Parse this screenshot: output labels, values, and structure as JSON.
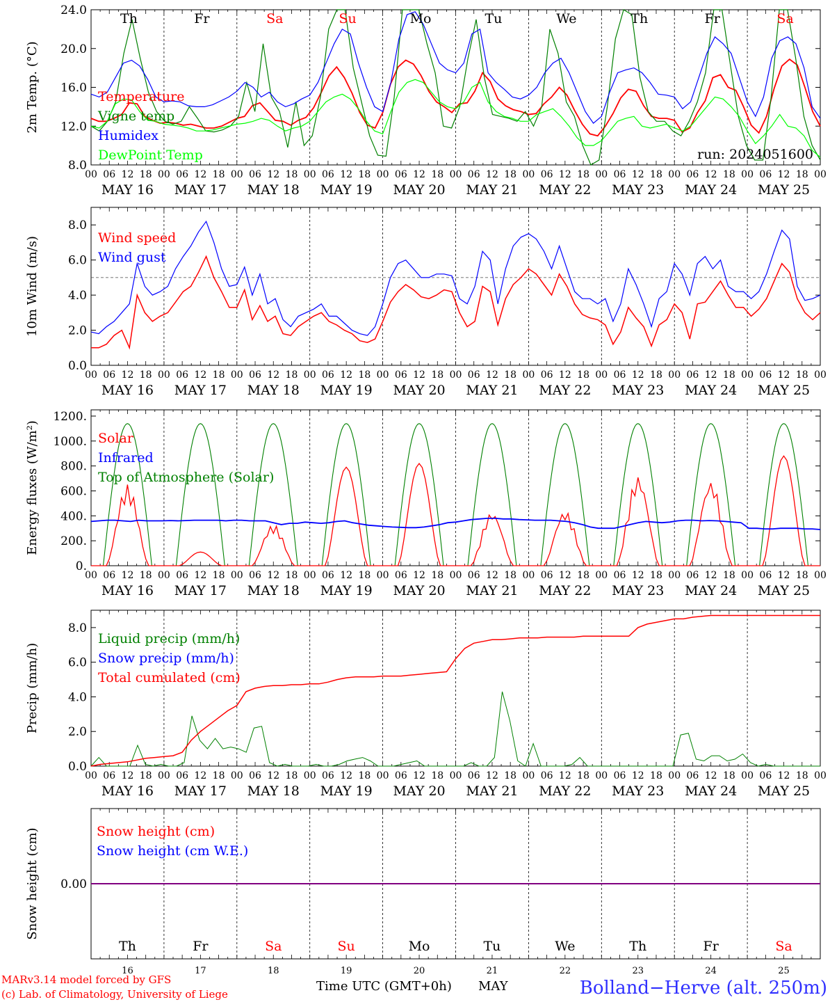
{
  "chart_data": [
    {
      "type": "line",
      "ylabel": "2m Temp. (°C)",
      "ylim": [
        8,
        24
      ],
      "yticks": [
        "8.0",
        "12.0",
        "16.0",
        "20.0",
        "24.0"
      ],
      "legend_placement": "left",
      "annotation": "run: 2024051600",
      "series": [
        {
          "name": "Temperature",
          "color": "#ff0000",
          "values": [
            12.8,
            12.5,
            12.5,
            12.8,
            13.2,
            14.4,
            14.3,
            13.0,
            12.6,
            12.3,
            12.4,
            12.3,
            12.1,
            12.2,
            12.0,
            11.8,
            11.8,
            12.0,
            12.4,
            12.8,
            13.0,
            14.1,
            14.4,
            13.5,
            12.6,
            12.5,
            12.1,
            12.6,
            12.9,
            13.9,
            15.5,
            17.2,
            18.1,
            17.0,
            15.4,
            13.4,
            12.1,
            11.8,
            13.4,
            16.3,
            18.1,
            18.8,
            18.4,
            17.2,
            15.6,
            14.5,
            14.0,
            13.4,
            14.3,
            14.4,
            15.6,
            17.5,
            16.6,
            14.8,
            14.1,
            13.7,
            13.5,
            13.2,
            13.3,
            14.3,
            15.0,
            16.0,
            15.2,
            13.6,
            12.2,
            11.2,
            11.0,
            12.0,
            13.3,
            14.9,
            15.8,
            15.6,
            14.1,
            13.0,
            12.8,
            12.8,
            12.6,
            11.4,
            11.8,
            13.4,
            14.6,
            17.0,
            17.3,
            16.0,
            15.7,
            14.0,
            12.1,
            11.3,
            13.0,
            15.9,
            18.2,
            18.9,
            18.3,
            16.0,
            13.5,
            12.0
          ]
        },
        {
          "name": "Vigne temp",
          "color": "#008000",
          "values": [
            12.0,
            11.5,
            12.5,
            14.5,
            19.5,
            23.0,
            19.0,
            15.5,
            13.5,
            12.5,
            12.2,
            12.5,
            14.0,
            12.8,
            11.5,
            11.4,
            11.6,
            12.0,
            13.0,
            16.5,
            13.5,
            20.5,
            15.0,
            13.5,
            9.8,
            14.5,
            10.0,
            11.0,
            15.0,
            22.0,
            24.0,
            24.0,
            18.0,
            14.5,
            11.0,
            9.0,
            8.9,
            15.0,
            24.0,
            24.0,
            24.0,
            20.5,
            17.5,
            12.0,
            11.8,
            14.0,
            19.0,
            23.0,
            17.0,
            13.2,
            13.0,
            12.8,
            12.5,
            13.5,
            12.0,
            14.0,
            22.0,
            19.5,
            14.5,
            13.0,
            10.0,
            8.0,
            8.5,
            14.0,
            21.0,
            24.0,
            23.5,
            17.0,
            13.5,
            12.5,
            12.5,
            11.5,
            11.0,
            12.5,
            14.5,
            17.5,
            24.0,
            24.0,
            18.5,
            13.0,
            10.0,
            8.5,
            8.5,
            15.0,
            24.0,
            24.0,
            19.0,
            13.0,
            10.0,
            8.5
          ]
        },
        {
          "name": "Humidex",
          "color": "#0000ff",
          "values": [
            15.3,
            15.0,
            15.5,
            17.0,
            18.5,
            18.8,
            18.2,
            16.8,
            15.0,
            14.5,
            14.6,
            14.5,
            14.1,
            14.0,
            14.0,
            14.2,
            14.6,
            15.0,
            15.6,
            16.5,
            16.0,
            15.0,
            15.5,
            14.5,
            14.0,
            14.3,
            14.8,
            15.2,
            16.5,
            18.5,
            20.5,
            22.0,
            21.5,
            18.5,
            16.0,
            14.0,
            13.5,
            16.5,
            21.0,
            23.5,
            23.8,
            22.5,
            20.5,
            18.5,
            17.8,
            17.5,
            18.5,
            21.5,
            22.0,
            17.5,
            16.5,
            15.8,
            15.0,
            14.8,
            15.2,
            16.0,
            17.5,
            18.5,
            19.0,
            17.5,
            15.5,
            13.5,
            12.3,
            13.0,
            15.5,
            17.5,
            17.8,
            18.0,
            17.5,
            16.5,
            15.3,
            15.2,
            15.0,
            13.8,
            14.5,
            17.0,
            19.5,
            21.2,
            20.5,
            19.5,
            17.0,
            14.5,
            13.0,
            15.0,
            19.0,
            20.8,
            21.2,
            20.5,
            18.0,
            14.0,
            12.8
          ]
        },
        {
          "name": "DewPoint Temp",
          "color": "#00ff00",
          "values": [
            12.0,
            11.8,
            12.5,
            14.3,
            14.8,
            14.7,
            13.5,
            12.6,
            12.5,
            12.2,
            12.1,
            12.0,
            11.8,
            11.5,
            11.5,
            11.6,
            11.8,
            12.0,
            12.2,
            12.3,
            12.5,
            12.8,
            12.6,
            12.0,
            11.5,
            11.8,
            12.0,
            12.5,
            13.5,
            14.5,
            15.0,
            15.3,
            14.8,
            13.8,
            12.5,
            11.5,
            11.2,
            13.5,
            15.5,
            16.5,
            16.8,
            16.5,
            15.5,
            14.5,
            14.0,
            13.8,
            14.5,
            16.0,
            16.5,
            14.5,
            13.5,
            13.0,
            12.8,
            12.5,
            12.5,
            13.2,
            13.5,
            13.8,
            13.0,
            12.0,
            10.8,
            10.0,
            10.0,
            10.5,
            11.5,
            12.5,
            12.8,
            13.0,
            12.0,
            11.8,
            12.0,
            12.2,
            11.8,
            11.5,
            12.0,
            13.0,
            14.0,
            15.0,
            14.8,
            14.0,
            13.0,
            11.5,
            10.2,
            11.0,
            12.0,
            13.2,
            12.0,
            11.8,
            11.0,
            9.5,
            8.8
          ]
        }
      ]
    },
    {
      "type": "line",
      "ylabel": "10m Wind (m/s)",
      "ylim": [
        0,
        9
      ],
      "yticks": [
        "0.0",
        "2.0",
        "4.0",
        "6.0",
        "8.0"
      ],
      "reference_line": 5,
      "legend_placement": "left",
      "series": [
        {
          "name": "Wind speed",
          "color": "#ff0000",
          "values": [
            1.0,
            1.0,
            1.2,
            1.7,
            2.0,
            1.0,
            4.0,
            3.0,
            2.5,
            2.8,
            3.0,
            3.6,
            4.2,
            4.5,
            5.3,
            6.2,
            5.0,
            4.2,
            3.3,
            3.3,
            4.3,
            2.6,
            3.4,
            2.5,
            2.8,
            1.8,
            1.7,
            2.2,
            2.5,
            2.8,
            3.0,
            2.5,
            2.3,
            2.0,
            1.8,
            1.4,
            1.3,
            1.5,
            2.5,
            3.6,
            4.2,
            4.6,
            4.3,
            3.9,
            3.8,
            4.0,
            4.3,
            4.2,
            3.0,
            2.2,
            2.5,
            4.5,
            4.2,
            2.3,
            3.8,
            4.6,
            5.0,
            5.5,
            5.2,
            4.6,
            4.0,
            5.2,
            4.5,
            3.5,
            2.9,
            2.7,
            2.6,
            2.3,
            1.2,
            1.9,
            3.3,
            2.7,
            2.2,
            1.1,
            2.3,
            2.6,
            3.5,
            3.0,
            1.5,
            3.5,
            3.6,
            4.2,
            4.8,
            4.0,
            3.3,
            3.3,
            2.8,
            3.2,
            3.8,
            4.8,
            5.8,
            5.3,
            3.8,
            3.0,
            2.6,
            3.0
          ]
        },
        {
          "name": "Wind gust",
          "color": "#0000ff",
          "values": [
            1.9,
            1.8,
            2.2,
            2.5,
            3.0,
            3.5,
            5.8,
            4.5,
            4.0,
            4.2,
            4.5,
            5.5,
            6.2,
            6.8,
            7.6,
            8.2,
            7.0,
            5.5,
            4.5,
            4.6,
            5.6,
            4.0,
            5.2,
            3.5,
            3.8,
            2.6,
            2.2,
            2.8,
            3.0,
            3.2,
            3.5,
            2.8,
            2.8,
            2.4,
            2.0,
            1.8,
            1.7,
            2.2,
            3.5,
            5.0,
            5.8,
            6.0,
            5.5,
            5.0,
            5.0,
            5.2,
            5.2,
            5.1,
            3.8,
            3.5,
            4.5,
            6.5,
            6.0,
            3.5,
            5.5,
            6.8,
            7.3,
            7.5,
            7.2,
            6.5,
            5.5,
            6.8,
            5.5,
            4.2,
            3.8,
            3.8,
            3.5,
            3.8,
            2.5,
            3.5,
            5.5,
            4.6,
            3.5,
            2.2,
            3.8,
            4.2,
            5.8,
            5.2,
            4.0,
            5.8,
            6.2,
            5.5,
            6.0,
            4.5,
            4.2,
            4.2,
            3.8,
            4.2,
            5.2,
            6.5,
            7.7,
            7.2,
            4.5,
            3.7,
            3.8,
            4.0
          ]
        }
      ]
    },
    {
      "type": "line",
      "ylabel": "Energy fluxes (W/m²)",
      "ylim": [
        0,
        1200
      ],
      "yticks": [
        "0.",
        "200.",
        "400.",
        "600.",
        "800.",
        "1000.",
        "1200."
      ],
      "legend_placement": "left",
      "series": [
        {
          "name": "Solar",
          "color": "#ff0000",
          "days_peak": [
            650,
            110,
            330,
            790,
            820,
            430,
            440,
            720,
            680,
            880
          ]
        },
        {
          "name": "Infrared",
          "color": "#0000ff",
          "values": [
            355,
            360,
            365,
            365,
            360,
            355,
            365,
            360,
            360,
            360,
            362,
            360,
            362,
            365,
            365,
            365,
            365,
            360,
            365,
            365,
            360,
            360,
            360,
            345,
            330,
            340,
            340,
            350,
            345,
            340,
            345,
            355,
            360,
            345,
            335,
            325,
            320,
            315,
            310,
            308,
            305,
            305,
            310,
            320,
            330,
            345,
            350,
            360,
            370,
            375,
            380,
            380,
            375,
            375,
            370,
            368,
            365,
            365,
            365,
            360,
            355,
            345,
            330,
            310,
            300,
            300,
            300,
            315,
            330,
            345,
            355,
            350,
            345,
            350,
            360,
            365,
            365,
            360,
            362,
            360,
            355,
            350,
            345,
            300,
            300,
            295,
            295,
            300,
            300,
            300,
            295,
            295,
            290
          ]
        },
        {
          "name": "Top of Atmosphere (Solar)",
          "color": "#008000",
          "peak": 1140
        }
      ]
    },
    {
      "type": "line",
      "ylabel": "Precip (mm/h)",
      "ylim": [
        0,
        9
      ],
      "yticks": [
        "0.0",
        "2.0",
        "4.0",
        "6.0",
        "8.0"
      ],
      "legend_placement": "left",
      "series": [
        {
          "name": "Liquid precip (mm/h)",
          "color": "#008000",
          "values": [
            0,
            0.5,
            0,
            0,
            0,
            0,
            1.2,
            0.1,
            0,
            0.1,
            0,
            0,
            0.2,
            2.9,
            1.5,
            1.0,
            1.6,
            1.0,
            1.1,
            1.0,
            0.8,
            2.2,
            2.3,
            0.2,
            0,
            0.1,
            0,
            0,
            0,
            0.1,
            0,
            0,
            0.1,
            0.3,
            0.4,
            0.5,
            0.3,
            0,
            0,
            0,
            0.1,
            0.2,
            0.3,
            0,
            0,
            0,
            0,
            0,
            0,
            0.2,
            0,
            0,
            0.5,
            4.3,
            2.6,
            0.3,
            0,
            1.3,
            0,
            0,
            0,
            0,
            0.1,
            0.5,
            0,
            0,
            0,
            0,
            0,
            0,
            0,
            0,
            0,
            0,
            0,
            0,
            1.8,
            1.9,
            0.4,
            0.3,
            0.6,
            0.6,
            0.3,
            0.4,
            0.7,
            0.2,
            0,
            0.1,
            0,
            0,
            0,
            0,
            0,
            0,
            0
          ]
        },
        {
          "name": "Snow precip (mm/h)",
          "color": "#0000ff",
          "values": []
        },
        {
          "name": "Total cumulated (cm)",
          "color": "#ff0000",
          "values": [
            0,
            0.1,
            0.15,
            0.2,
            0.25,
            0.35,
            0.45,
            0.5,
            0.55,
            0.6,
            0.8,
            1.5,
            2.0,
            2.4,
            2.8,
            3.2,
            3.5,
            4.3,
            4.5,
            4.6,
            4.65,
            4.65,
            4.7,
            4.7,
            4.75,
            4.75,
            4.85,
            5.0,
            5.1,
            5.15,
            5.15,
            5.15,
            5.2,
            5.2,
            5.2,
            5.25,
            5.3,
            5.35,
            5.4,
            5.45,
            6.2,
            6.8,
            7.1,
            7.2,
            7.3,
            7.3,
            7.35,
            7.4,
            7.4,
            7.4,
            7.45,
            7.45,
            7.45,
            7.45,
            7.5,
            7.5,
            7.5,
            7.5,
            7.5,
            7.5,
            8.0,
            8.2,
            8.3,
            8.4,
            8.5,
            8.5,
            8.6,
            8.65,
            8.7,
            8.7,
            8.7,
            8.7,
            8.7,
            8.7,
            8.7,
            8.7,
            8.7,
            8.7,
            8.7,
            8.7,
            8.7
          ]
        }
      ]
    },
    {
      "type": "line",
      "ylabel": "Snow height (cm)",
      "ytick": "0.00",
      "legend_placement": "left",
      "series": [
        {
          "name": "Snow height (cm)",
          "color": "#ff0000",
          "values": [
            0,
            0
          ]
        },
        {
          "name": "Snow height (cm W.E.)",
          "color": "#0000ff",
          "values": [
            0,
            0
          ]
        }
      ]
    }
  ],
  "x_axis": {
    "hour_labels": [
      "00",
      "06",
      "12",
      "18"
    ],
    "end_label": "00",
    "dates": [
      "MAY 16",
      "MAY 17",
      "MAY 18",
      "MAY 19",
      "MAY 20",
      "MAY 21",
      "MAY 22",
      "MAY 23",
      "MAY 24",
      "MAY 25"
    ],
    "weekdays": [
      "Th",
      "Fr",
      "Sa",
      "Su",
      "Mo",
      "Tu",
      "We",
      "Th",
      "Fr",
      "Sa"
    ],
    "weekend_days": [
      "Sa",
      "Su"
    ],
    "day_numbers": [
      "16",
      "17",
      "18",
      "19",
      "20",
      "21",
      "22",
      "23",
      "24",
      "25"
    ],
    "xlabel": "Time UTC (GMT+0h)",
    "month": "MAY"
  },
  "footer": {
    "credit1": "MARv3.14 model forced by GFS",
    "credit2": "(c) Lab. of Climatology, University of Liege",
    "station": "Bolland−Herve (alt. 250m)"
  },
  "colors": {
    "weekday": "#000000",
    "weekend": "#ff0000",
    "credit": "#ff0000",
    "station": "#3030ff",
    "grid": "#000000"
  }
}
